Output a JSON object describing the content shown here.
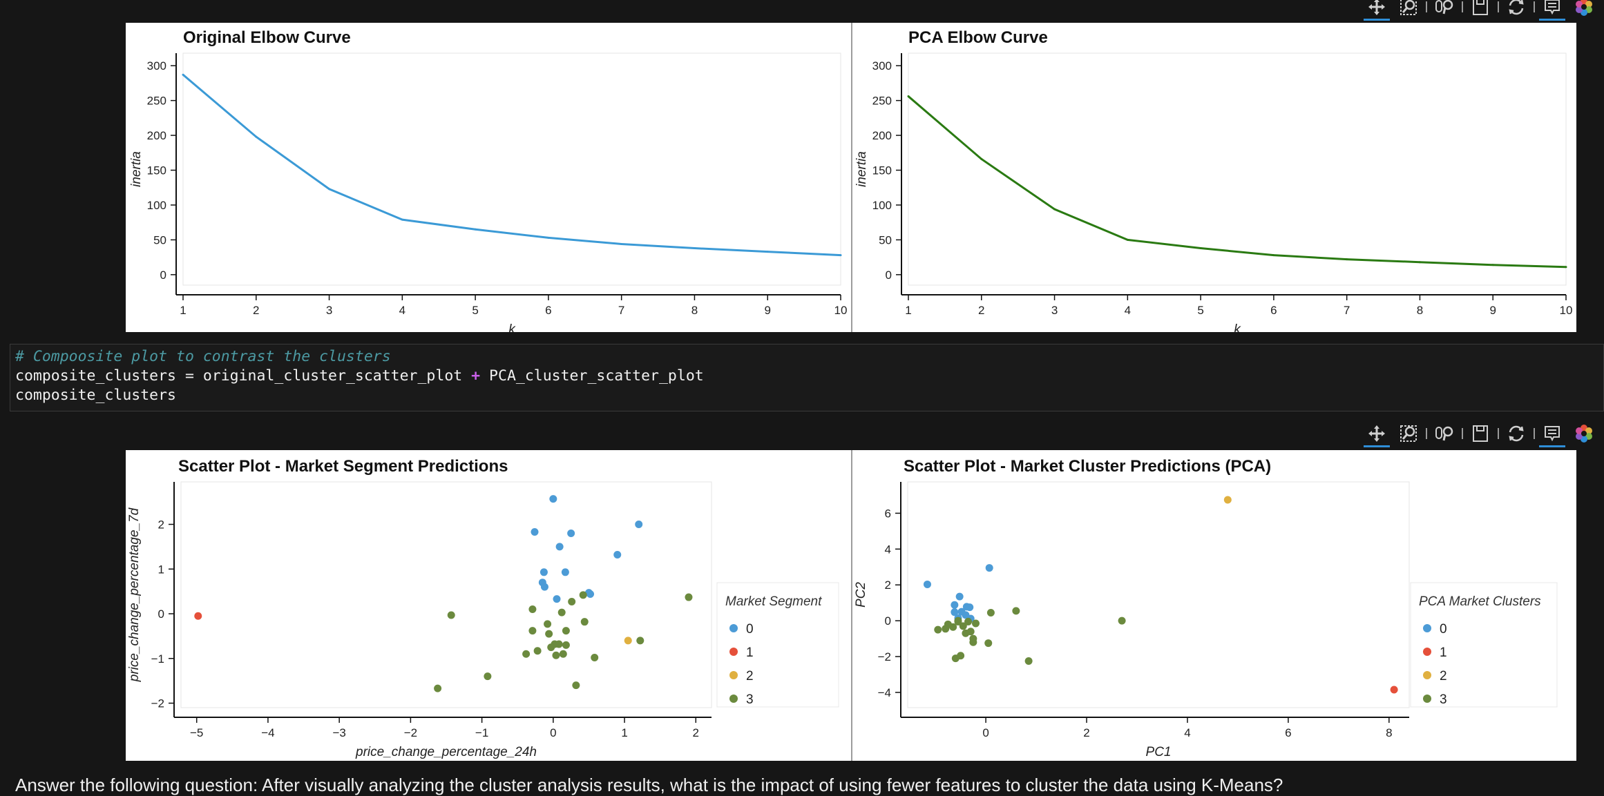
{
  "toolbar_icons": [
    "pan-icon",
    "box-zoom-icon",
    "wheel-zoom-icon",
    "save-icon",
    "reset-icon",
    "hover-icon",
    "bokeh-logo-icon"
  ],
  "colors": {
    "elbow_original": "#3b9ad6",
    "elbow_pca": "#2a7a12",
    "cluster_0": "#4c9bd6",
    "cluster_1": "#e5503a",
    "cluster_2": "#e0b040",
    "cluster_3": "#6b8a3e"
  },
  "code_cell": {
    "comment": "# Compoosite plot to contrast the clusters",
    "line2_left": "composite_clusters = original_cluster_scatter_plot ",
    "line2_op": "+",
    "line2_right": " PCA_cluster_scatter_plot",
    "line3": "composite_clusters"
  },
  "bottom_text": "Answer the following question: After visually analyzing the cluster analysis results, what is the impact of using fewer features to cluster the data using K-Means?",
  "chart_data": [
    {
      "type": "line",
      "title": "Original Elbow Curve",
      "xlabel": "k",
      "ylabel": "inertia",
      "x": [
        1,
        2,
        3,
        4,
        5,
        6,
        7,
        8,
        9,
        10
      ],
      "y": [
        287,
        198,
        123,
        79,
        65,
        53,
        44,
        38,
        33,
        28
      ],
      "xlim": [
        1,
        10
      ],
      "ylim": [
        -15,
        318
      ],
      "xticks": [
        "1",
        "2",
        "3",
        "4",
        "5",
        "6",
        "7",
        "8",
        "9",
        "10"
      ],
      "yticks": [
        "0",
        "50",
        "100",
        "150",
        "200",
        "250",
        "300"
      ]
    },
    {
      "type": "line",
      "title": "PCA Elbow Curve",
      "xlabel": "k",
      "ylabel": "inertia",
      "x": [
        1,
        2,
        3,
        4,
        5,
        6,
        7,
        8,
        9,
        10
      ],
      "y": [
        256,
        166,
        94,
        50,
        38,
        28,
        22,
        18,
        14,
        11
      ],
      "xlim": [
        1,
        10
      ],
      "ylim": [
        -15,
        318
      ],
      "xticks": [
        "1",
        "2",
        "3",
        "4",
        "5",
        "6",
        "7",
        "8",
        "9",
        "10"
      ],
      "yticks": [
        "0",
        "50",
        "100",
        "150",
        "200",
        "250",
        "300"
      ]
    },
    {
      "type": "scatter",
      "title": "Scatter Plot - Market Segment Predictions",
      "xlabel": "price_change_percentage_24h",
      "ylabel": "price_change_percentage_7d",
      "xlim": [
        -5.22,
        2.22
      ],
      "ylim": [
        -2.1,
        2.95
      ],
      "xticks": [
        "−5",
        "−4",
        "−3",
        "−2",
        "−1",
        "0",
        "1",
        "2"
      ],
      "yticks": [
        "−2",
        "−1",
        "0",
        "1",
        "2"
      ],
      "legend_title": "Market Segment",
      "legend_labels": [
        "0",
        "1",
        "2",
        "3"
      ],
      "series": [
        {
          "name": "0",
          "points": [
            [
              0.0,
              2.57
            ],
            [
              -0.26,
              1.83
            ],
            [
              0.25,
              1.8
            ],
            [
              1.2,
              2.0
            ],
            [
              0.09,
              1.5
            ],
            [
              -0.13,
              0.93
            ],
            [
              0.17,
              0.93
            ],
            [
              -0.15,
              0.7
            ],
            [
              -0.12,
              0.6
            ],
            [
              0.9,
              1.32
            ],
            [
              0.5,
              0.47
            ],
            [
              0.52,
              0.44
            ],
            [
              0.05,
              0.33
            ]
          ]
        },
        {
          "name": "1",
          "points": [
            [
              -4.98,
              -0.05
            ]
          ]
        },
        {
          "name": "2",
          "points": [
            [
              1.05,
              -0.6
            ]
          ]
        },
        {
          "name": "3",
          "points": [
            [
              1.9,
              0.37
            ],
            [
              1.22,
              -0.6
            ],
            [
              0.42,
              0.42
            ],
            [
              0.26,
              0.27
            ],
            [
              -0.29,
              0.1
            ],
            [
              -1.43,
              -0.03
            ],
            [
              0.12,
              0.03
            ],
            [
              -0.08,
              -0.23
            ],
            [
              0.44,
              -0.18
            ],
            [
              -0.29,
              -0.38
            ],
            [
              0.18,
              -0.38
            ],
            [
              -0.06,
              -0.45
            ],
            [
              0.02,
              -0.68
            ],
            [
              0.08,
              -0.68
            ],
            [
              -0.03,
              -0.75
            ],
            [
              0.18,
              -0.7
            ],
            [
              -0.38,
              -0.9
            ],
            [
              -0.22,
              -0.83
            ],
            [
              0.04,
              -0.93
            ],
            [
              0.14,
              -0.9
            ],
            [
              0.58,
              -0.98
            ],
            [
              -0.92,
              -1.4
            ],
            [
              0.32,
              -1.6
            ],
            [
              -1.62,
              -1.67
            ]
          ]
        }
      ]
    },
    {
      "type": "scatter",
      "title": "Scatter Plot - Market Cluster Predictions (PCA)",
      "xlabel": "PC1",
      "ylabel": "PC2",
      "xlim": [
        -1.55,
        8.4
      ],
      "ylim": [
        -4.85,
        7.75
      ],
      "xticks": [
        "0",
        "2",
        "4",
        "6",
        "8"
      ],
      "yticks": [
        "−4",
        "−2",
        "0",
        "2",
        "4",
        "6"
      ],
      "legend_title": "PCA Market Clusters",
      "legend_labels": [
        "0",
        "1",
        "2",
        "3"
      ],
      "series": [
        {
          "name": "0",
          "points": [
            [
              0.07,
              2.95
            ],
            [
              -1.16,
              2.03
            ],
            [
              -0.52,
              1.35
            ],
            [
              -0.62,
              0.88
            ],
            [
              -0.38,
              0.78
            ],
            [
              -0.32,
              0.75
            ],
            [
              -0.48,
              0.5
            ],
            [
              -0.62,
              0.48
            ],
            [
              -0.4,
              0.32
            ],
            [
              -0.55,
              0.15
            ],
            [
              -0.3,
              0.12
            ]
          ]
        },
        {
          "name": "1",
          "points": [
            [
              8.1,
              -3.85
            ]
          ]
        },
        {
          "name": "2",
          "points": [
            [
              4.8,
              6.75
            ]
          ]
        },
        {
          "name": "3",
          "points": [
            [
              2.7,
              0.0
            ],
            [
              0.6,
              0.55
            ],
            [
              0.1,
              0.45
            ],
            [
              -0.55,
              0.0
            ],
            [
              -0.35,
              -0.05
            ],
            [
              -0.2,
              -0.15
            ],
            [
              -0.75,
              -0.2
            ],
            [
              -0.45,
              -0.3
            ],
            [
              -0.65,
              -0.35
            ],
            [
              -0.8,
              -0.45
            ],
            [
              -0.3,
              -0.6
            ],
            [
              -0.4,
              -0.7
            ],
            [
              -0.25,
              -1.0
            ],
            [
              -0.6,
              -2.1
            ],
            [
              -0.5,
              -1.95
            ],
            [
              -0.25,
              -1.2
            ],
            [
              0.05,
              -1.25
            ],
            [
              0.85,
              -2.25
            ],
            [
              -0.95,
              -0.5
            ],
            [
              -0.55,
              -0.05
            ]
          ]
        }
      ]
    }
  ]
}
